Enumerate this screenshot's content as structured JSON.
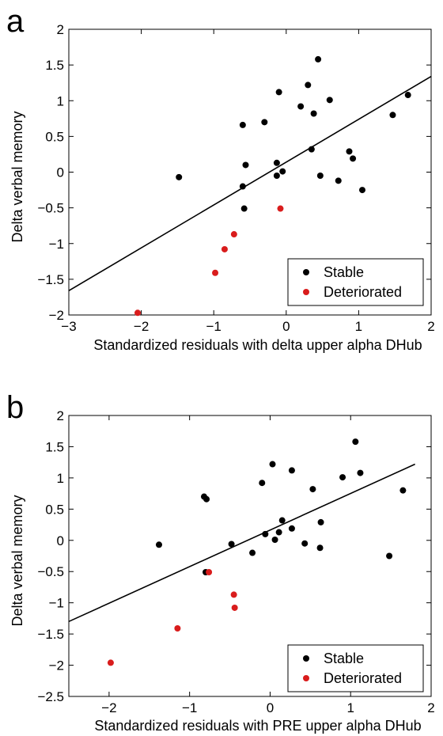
{
  "chart_data": [
    {
      "type": "scatter",
      "panel_label": "a",
      "xlabel": "Standardized residuals with delta upper alpha DHub",
      "ylabel": "Delta verbal memory",
      "xlim": [
        -3,
        2
      ],
      "ylim": [
        -2,
        2
      ],
      "xticks": [
        -3,
        -2,
        -1,
        0,
        1,
        2
      ],
      "yticks": [
        -2,
        -1.5,
        -1,
        -0.5,
        0,
        0.5,
        1,
        1.5,
        2
      ],
      "xtick_labels": [
        "−3",
        "−2",
        "−1",
        "0",
        "1",
        "2"
      ],
      "ytick_labels": [
        "−2",
        "−1.5",
        "−1",
        "−0.5",
        "0",
        "0.5",
        "1",
        "1.5",
        "2"
      ],
      "grid": false,
      "legend_position": "bottom-right",
      "fit_line": {
        "x": [
          -3,
          2
        ],
        "y": [
          -1.66,
          1.34
        ]
      },
      "series": [
        {
          "name": "Stable",
          "color": "#000000",
          "points": [
            [
              -1.48,
              -0.07
            ],
            [
              -0.6,
              0.66
            ],
            [
              -0.6,
              -0.2
            ],
            [
              -0.58,
              -0.51
            ],
            [
              -0.56,
              0.1
            ],
            [
              -0.3,
              0.7
            ],
            [
              -0.13,
              0.13
            ],
            [
              -0.13,
              -0.05
            ],
            [
              -0.1,
              1.12
            ],
            [
              -0.05,
              0.01
            ],
            [
              0.2,
              0.92
            ],
            [
              0.3,
              1.22
            ],
            [
              0.35,
              0.32
            ],
            [
              0.38,
              0.82
            ],
            [
              0.44,
              1.58
            ],
            [
              0.47,
              -0.05
            ],
            [
              0.6,
              1.01
            ],
            [
              0.72,
              -0.12
            ],
            [
              0.87,
              0.29
            ],
            [
              0.92,
              0.19
            ],
            [
              1.05,
              -0.25
            ],
            [
              1.47,
              0.8
            ],
            [
              1.68,
              1.08
            ]
          ]
        },
        {
          "name": "Deteriorated",
          "color": "#d91c1c",
          "points": [
            [
              -2.05,
              -1.97
            ],
            [
              -0.98,
              -1.41
            ],
            [
              -0.85,
              -1.08
            ],
            [
              -0.72,
              -0.87
            ],
            [
              -0.08,
              -0.51
            ]
          ]
        }
      ]
    },
    {
      "type": "scatter",
      "panel_label": "b",
      "xlabel": "Standardized residuals with PRE upper alpha DHub",
      "ylabel": "Delta verbal memory",
      "xlim": [
        -2.5,
        2
      ],
      "ylim": [
        -2.5,
        2
      ],
      "xticks": [
        -2,
        -1,
        0,
        1,
        2
      ],
      "yticks": [
        -2.5,
        -2,
        -1.5,
        -1,
        -0.5,
        0,
        0.5,
        1,
        1.5,
        2
      ],
      "xtick_labels": [
        "−2",
        "−1",
        "0",
        "1",
        "2"
      ],
      "ytick_labels": [
        "−2.5",
        "−2",
        "−1.5",
        "−1",
        "−0.5",
        "0",
        "0.5",
        "1",
        "1.5",
        "2"
      ],
      "grid": false,
      "legend_position": "bottom-right",
      "fit_line": {
        "x": [
          -2.5,
          1.8
        ],
        "y": [
          -1.3,
          1.22
        ]
      },
      "series": [
        {
          "name": "Stable",
          "color": "#000000",
          "points": [
            [
              -1.38,
              -0.07
            ],
            [
              -0.82,
              0.7
            ],
            [
              -0.79,
              0.66
            ],
            [
              -0.8,
              -0.51
            ],
            [
              -0.48,
              -0.06
            ],
            [
              -0.22,
              -0.2
            ],
            [
              -0.1,
              0.92
            ],
            [
              -0.06,
              0.1
            ],
            [
              0.03,
              1.22
            ],
            [
              0.06,
              0.01
            ],
            [
              0.11,
              0.13
            ],
            [
              0.15,
              0.32
            ],
            [
              0.27,
              1.12
            ],
            [
              0.27,
              0.19
            ],
            [
              0.43,
              -0.05
            ],
            [
              0.53,
              0.82
            ],
            [
              0.62,
              -0.12
            ],
            [
              0.63,
              0.29
            ],
            [
              0.9,
              1.01
            ],
            [
              1.06,
              1.58
            ],
            [
              1.12,
              1.08
            ],
            [
              1.48,
              -0.25
            ],
            [
              1.65,
              0.8
            ]
          ]
        },
        {
          "name": "Deteriorated",
          "color": "#d91c1c",
          "points": [
            [
              -1.98,
              -1.96
            ],
            [
              -1.15,
              -1.41
            ],
            [
              -0.76,
              -0.51
            ],
            [
              -0.45,
              -0.87
            ],
            [
              -0.44,
              -1.08
            ]
          ]
        }
      ]
    }
  ]
}
